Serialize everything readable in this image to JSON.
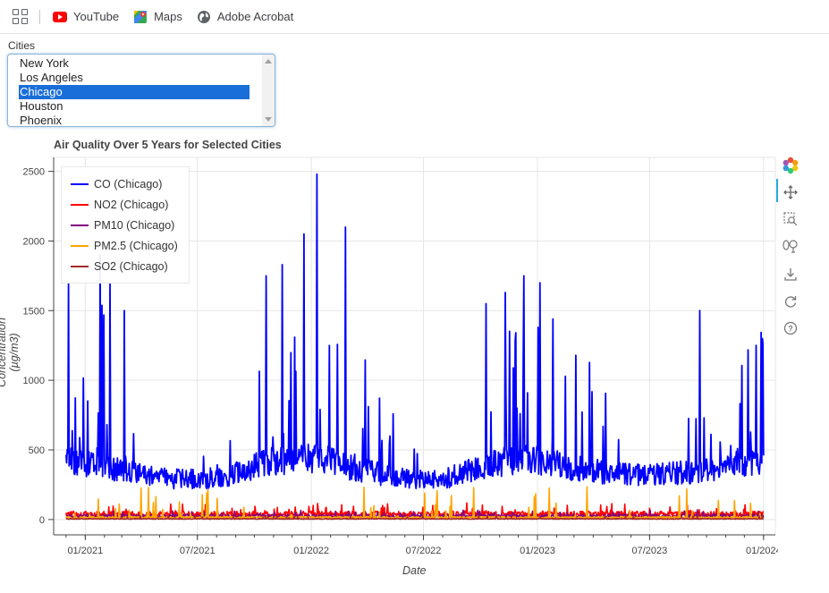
{
  "bookmarks": {
    "items": [
      {
        "label": "YouTube",
        "icon": "youtube-icon"
      },
      {
        "label": "Maps",
        "icon": "maps-icon"
      },
      {
        "label": "Adobe Acrobat",
        "icon": "globe-icon"
      }
    ]
  },
  "cities": {
    "label": "Cities",
    "options": [
      "New York",
      "Los Angeles",
      "Chicago",
      "Houston",
      "Phoenix"
    ],
    "selected": "Chicago"
  },
  "toolbar": {
    "tools": [
      "bokeh-logo-icon",
      "pan-icon",
      "box-zoom-icon",
      "wheel-zoom-icon",
      "save-icon",
      "reset-icon",
      "help-icon"
    ],
    "active": "pan-icon"
  },
  "chart_data": {
    "type": "line",
    "title": "Air Quality Over 5 Years for Selected Cities",
    "xlabel": "Date",
    "ylabel": "Concentration (µg/m3)",
    "x_ticks": [
      "01/2021",
      "07/2021",
      "01/2022",
      "07/2022",
      "01/2023",
      "07/2023",
      "01/2024"
    ],
    "y_ticks": [
      0,
      500,
      1000,
      1500,
      2000,
      2500
    ],
    "xlim": [
      "2020-11-11",
      "2024-01-20"
    ],
    "ylim": [
      -110,
      2600
    ],
    "grid": true,
    "legend_position": "top-left",
    "series": [
      {
        "name": "CO (Chicago)",
        "color": "#0000ff",
        "points": [
          [
            "2020-12-01",
            430
          ],
          [
            "2021-01-01",
            400
          ],
          [
            "2021-02-01",
            380
          ],
          [
            "2021-03-01",
            350
          ],
          [
            "2021-04-01",
            330
          ],
          [
            "2021-05-01",
            300
          ],
          [
            "2021-06-01",
            290
          ],
          [
            "2021-07-01",
            290
          ],
          [
            "2021-08-01",
            300
          ],
          [
            "2021-09-01",
            330
          ],
          [
            "2021-10-01",
            380
          ],
          [
            "2021-11-01",
            420
          ],
          [
            "2021-12-01",
            430
          ],
          [
            "2022-01-01",
            440
          ],
          [
            "2022-02-01",
            420
          ],
          [
            "2022-03-01",
            380
          ],
          [
            "2022-04-01",
            350
          ],
          [
            "2022-05-01",
            320
          ],
          [
            "2022-06-01",
            300
          ],
          [
            "2022-07-01",
            280
          ],
          [
            "2022-08-01",
            290
          ],
          [
            "2022-09-01",
            330
          ],
          [
            "2022-10-01",
            380
          ],
          [
            "2022-11-01",
            410
          ],
          [
            "2022-12-01",
            430
          ],
          [
            "2023-01-01",
            420
          ],
          [
            "2023-02-01",
            400
          ],
          [
            "2023-03-01",
            370
          ],
          [
            "2023-04-01",
            350
          ],
          [
            "2023-05-01",
            330
          ],
          [
            "2023-06-01",
            320
          ],
          [
            "2023-07-01",
            320
          ],
          [
            "2023-08-01",
            330
          ],
          [
            "2023-09-01",
            340
          ],
          [
            "2023-10-01",
            360
          ],
          [
            "2023-11-01",
            380
          ],
          [
            "2023-12-01",
            400
          ],
          [
            "2024-01-01",
            420
          ]
        ],
        "peaks": [
          [
            "2020-12-05",
            1700
          ],
          [
            "2021-01-25",
            1900
          ],
          [
            "2021-02-10",
            1700
          ],
          [
            "2021-03-05",
            1500
          ],
          [
            "2021-10-20",
            1750
          ],
          [
            "2021-11-15",
            1830
          ],
          [
            "2021-12-20",
            2050
          ],
          [
            "2022-01-10",
            2480
          ],
          [
            "2022-02-25",
            2100
          ],
          [
            "2022-10-10",
            1550
          ],
          [
            "2022-11-10",
            1630
          ],
          [
            "2022-12-10",
            1750
          ],
          [
            "2023-01-05",
            1700
          ],
          [
            "2023-09-20",
            1500
          ],
          [
            "2023-12-20",
            1250
          ]
        ]
      },
      {
        "name": "NO2 (Chicago)",
        "color": "#ff0000",
        "baseline": 40,
        "spike": 120
      },
      {
        "name": "PM10 (Chicago)",
        "color": "#800080",
        "baseline": 25,
        "spike": 70
      },
      {
        "name": "PM2.5 (Chicago)",
        "color": "#ffa500",
        "baseline": 15,
        "spike": 240
      },
      {
        "name": "SO2 (Chicago)",
        "color": "#a52a2a",
        "baseline": 5,
        "spike": 30
      }
    ]
  }
}
